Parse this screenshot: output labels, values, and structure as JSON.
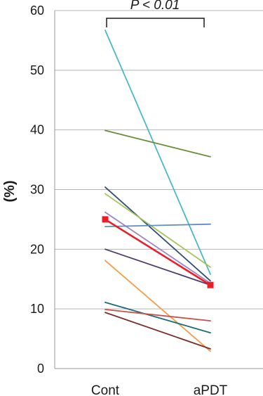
{
  "chart_data": {
    "type": "line",
    "title": "",
    "xlabel": "",
    "ylabel": "(%)",
    "categories": [
      "Cont",
      "aPDT"
    ],
    "ylim": [
      0,
      60
    ],
    "yticks": [
      0,
      10,
      20,
      30,
      40,
      50,
      60
    ],
    "grid": true,
    "annotation": "P < 0.01",
    "series": [
      {
        "values": [
          56.7,
          15.8
        ],
        "color": "#4bb8c8"
      },
      {
        "values": [
          39.9,
          35.5
        ],
        "color": "#6b8e3e"
      },
      {
        "values": [
          30.4,
          14.7
        ],
        "color": "#2c4f73"
      },
      {
        "values": [
          29.3,
          17.0
        ],
        "color": "#a6c25a"
      },
      {
        "values": [
          26.2,
          14.3
        ],
        "color": "#9a86c8"
      },
      {
        "values": [
          23.8,
          24.2
        ],
        "color": "#5b8ec8"
      },
      {
        "values": [
          20.0,
          14.0
        ],
        "color": "#4f3d6e"
      },
      {
        "values": [
          18.1,
          2.9
        ],
        "color": "#f39c4a"
      },
      {
        "values": [
          11.1,
          6.0
        ],
        "color": "#1f6a7a"
      },
      {
        "values": [
          9.9,
          8.0
        ],
        "color": "#c9534b"
      },
      {
        "values": [
          9.4,
          3.3
        ],
        "color": "#7a2f2a"
      },
      {
        "values": [
          25.0,
          14.0
        ],
        "color": "#ee1c25",
        "marker": "square"
      }
    ]
  }
}
